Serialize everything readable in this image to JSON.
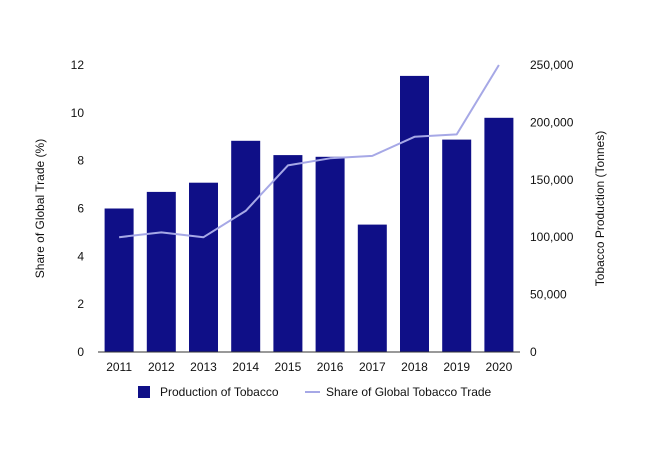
{
  "chart_data": {
    "type": "bar",
    "categories": [
      "2011",
      "2012",
      "2013",
      "2014",
      "2015",
      "2016",
      "2017",
      "2018",
      "2019",
      "2020"
    ],
    "series": [
      {
        "name": "Production of Tobacco",
        "type": "bar",
        "axis": "right",
        "color": "#0f0f87",
        "values": [
          125000,
          139500,
          147500,
          184000,
          171500,
          170000,
          111000,
          240500,
          185000,
          204000
        ]
      },
      {
        "name": "Share of Global Tobacco Trade",
        "type": "line",
        "axis": "left",
        "color": "#a6a8e6",
        "values": [
          4.8,
          5.0,
          4.8,
          5.9,
          7.8,
          8.1,
          8.2,
          9.0,
          9.1,
          12.0
        ]
      }
    ],
    "ylabel": "Share of Global Trade (%)",
    "ylabel_right": "Tobacco Production (Tonnes)",
    "ylim": [
      0,
      12
    ],
    "ylim_right": [
      0,
      250000
    ],
    "yticks": [
      "0",
      "2",
      "4",
      "6",
      "8",
      "10",
      "12"
    ],
    "yticks_right": [
      "0",
      "50,000",
      "100,000",
      "150,000",
      "200,000",
      "250,000"
    ],
    "grid": false,
    "legend_position": "bottom"
  }
}
